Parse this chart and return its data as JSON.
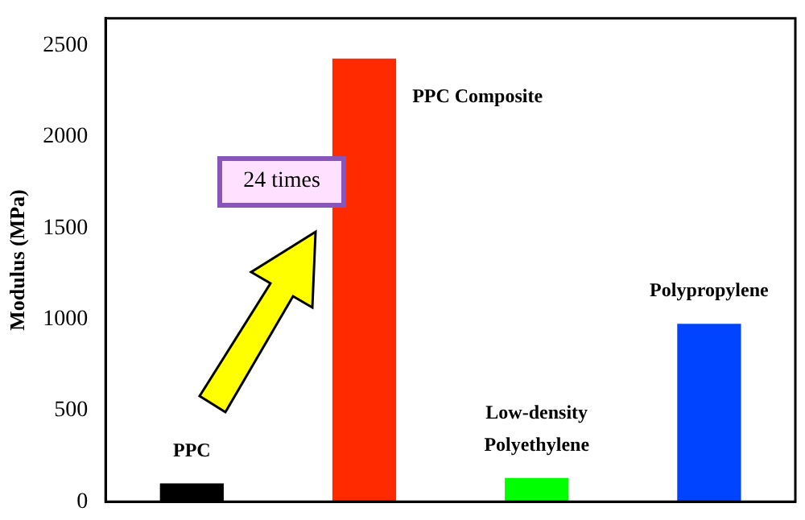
{
  "chart_data": {
    "type": "bar",
    "ylabel": "Modulus (MPa)",
    "categories": [
      null,
      null,
      null,
      null
    ],
    "series": [
      {
        "name": "PPC",
        "color": "#000000",
        "values": [
          100,
          null,
          null,
          null
        ]
      },
      {
        "name": "PPC Composite",
        "color": "#ff2a00",
        "values": [
          null,
          2430,
          null,
          null
        ]
      },
      {
        "name": "Low-density Polyethylene",
        "color": "#00ff00",
        "values": [
          null,
          null,
          130,
          null
        ]
      },
      {
        "name": "Polypropylene",
        "color": "#0044ff",
        "values": [
          null,
          null,
          null,
          975
        ]
      }
    ],
    "ylim": [
      0,
      2650
    ],
    "yticks": [
      0,
      500,
      1000,
      1500,
      2000,
      2500
    ],
    "grid": false,
    "legend": false,
    "tick_labels": "y",
    "annotations": [
      "24 times"
    ]
  }
}
